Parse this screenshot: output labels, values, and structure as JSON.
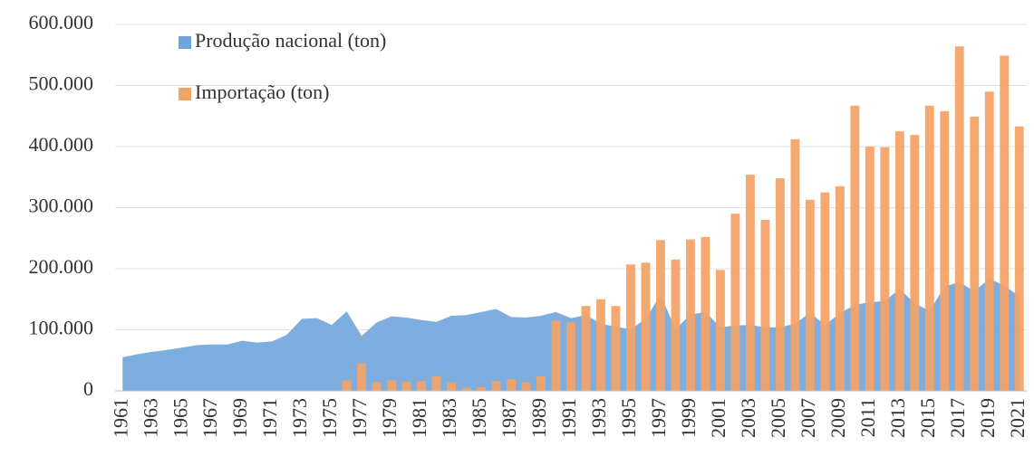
{
  "chart_data": {
    "type": "bar_area",
    "categories": [
      "1961",
      null,
      "1963",
      null,
      "1965",
      null,
      "1967",
      null,
      "1969",
      null,
      "1971",
      null,
      "1973",
      null,
      "1975",
      null,
      "1977",
      null,
      "1979",
      null,
      "1981",
      null,
      "1983",
      null,
      "1985",
      null,
      "1987",
      null,
      "1989",
      null,
      "1991",
      null,
      "1993",
      null,
      "1995",
      null,
      "1997",
      null,
      "1999",
      null,
      "2001",
      null,
      "2003",
      null,
      "2005",
      null,
      "2007",
      null,
      "2009",
      null,
      "2011",
      null,
      "2013",
      null,
      "2015",
      null,
      "2017",
      null,
      "2019",
      null,
      "2021"
    ],
    "series": [
      {
        "name": "Produção nacional (ton)",
        "kind": "area",
        "color": "#6fa5dc",
        "values": [
          55000,
          60000,
          64000,
          67000,
          71000,
          75000,
          76000,
          76000,
          82000,
          79000,
          81000,
          92000,
          118000,
          119000,
          108000,
          130000,
          90000,
          112000,
          122000,
          120000,
          116000,
          113000,
          123000,
          124000,
          129000,
          134000,
          121000,
          120000,
          123000,
          129000,
          119000,
          124000,
          110000,
          105000,
          101000,
          118000,
          157000,
          101000,
          125000,
          129000,
          104000,
          107000,
          108000,
          104000,
          104000,
          110000,
          128000,
          108000,
          127000,
          141000,
          145000,
          147000,
          167000,
          143000,
          131000,
          171000,
          178000,
          163000,
          184000,
          172000,
          155000
        ]
      },
      {
        "name": "Importação (ton)",
        "kind": "bar",
        "color": "#f4a265",
        "values": [
          0,
          0,
          0,
          0,
          0,
          0,
          0,
          0,
          0,
          0,
          0,
          0,
          0,
          0,
          0,
          17000,
          45000,
          14000,
          17000,
          15000,
          16000,
          24000,
          14000,
          5000,
          6000,
          16000,
          19000,
          14000,
          24000,
          115000,
          112000,
          139000,
          150000,
          139000,
          207000,
          210000,
          247000,
          215000,
          248000,
          252000,
          198000,
          290000,
          354000,
          280000,
          348000,
          412000,
          313000,
          325000,
          335000,
          467000,
          400000,
          399000,
          425000,
          419000,
          467000,
          458000,
          564000,
          449000,
          490000,
          549000,
          433000
        ]
      }
    ],
    "ylim": [
      0,
      600000
    ],
    "yticks": [
      0,
      {
        "value": 100000,
        "label": "100.000"
      },
      {
        "value": 200000,
        "label": "200.000"
      },
      {
        "value": 300000,
        "label": "300.000"
      },
      {
        "value": 400000,
        "label": "400.000"
      },
      {
        "value": 500000,
        "label": "500.000"
      },
      {
        "value": 600000,
        "label": "600.000"
      }
    ],
    "grid": true
  }
}
